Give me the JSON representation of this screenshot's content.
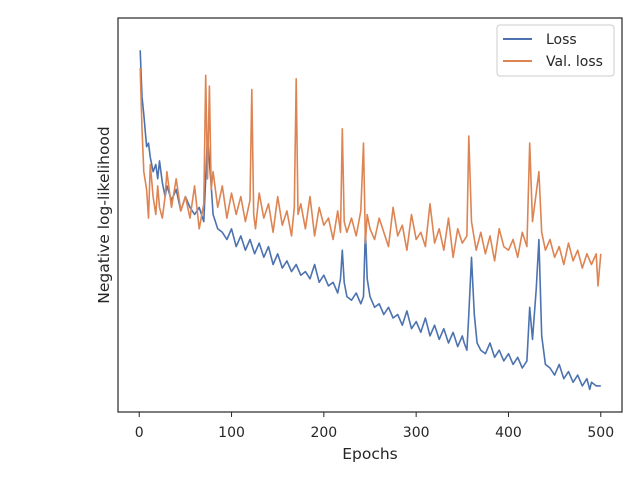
{
  "chart_data": {
    "type": "line",
    "title": "",
    "xlabel": "Epochs",
    "ylabel": "Negative log-likelihood",
    "xlim": [
      -23,
      523
    ],
    "ylim": [
      0,
      1
    ],
    "xticks": [
      0,
      100,
      200,
      300,
      400,
      500
    ],
    "ytick_labels_shown": false,
    "grid": false,
    "legend_position": "top-right",
    "series": [
      {
        "name": "Loss",
        "color": "#4c72b0",
        "x": [
          1,
          3,
          5,
          8,
          10,
          12,
          15,
          18,
          20,
          22,
          25,
          28,
          30,
          35,
          40,
          45,
          50,
          55,
          60,
          65,
          70,
          72,
          74,
          76,
          78,
          80,
          85,
          90,
          95,
          100,
          105,
          110,
          115,
          120,
          125,
          130,
          135,
          140,
          145,
          150,
          155,
          160,
          165,
          170,
          175,
          180,
          185,
          190,
          195,
          200,
          205,
          210,
          215,
          218,
          220,
          222,
          225,
          230,
          235,
          240,
          243,
          245,
          247,
          250,
          255,
          260,
          265,
          270,
          275,
          280,
          285,
          290,
          295,
          300,
          305,
          310,
          315,
          320,
          325,
          330,
          335,
          340,
          345,
          350,
          352,
          355,
          357,
          360,
          363,
          366,
          370,
          375,
          380,
          385,
          390,
          395,
          400,
          405,
          410,
          415,
          420,
          423,
          426,
          430,
          433,
          436,
          440,
          445,
          450,
          455,
          460,
          465,
          470,
          475,
          480,
          485,
          488,
          490,
          495,
          500
        ],
        "y": [
          0.96,
          0.83,
          0.78,
          0.69,
          0.7,
          0.66,
          0.62,
          0.64,
          0.6,
          0.65,
          0.59,
          0.55,
          0.58,
          0.54,
          0.57,
          0.51,
          0.55,
          0.52,
          0.5,
          0.52,
          0.48,
          0.6,
          0.72,
          0.65,
          0.58,
          0.5,
          0.46,
          0.45,
          0.43,
          0.46,
          0.41,
          0.44,
          0.4,
          0.43,
          0.39,
          0.42,
          0.38,
          0.41,
          0.36,
          0.39,
          0.35,
          0.37,
          0.34,
          0.36,
          0.33,
          0.34,
          0.32,
          0.36,
          0.31,
          0.33,
          0.3,
          0.31,
          0.28,
          0.32,
          0.4,
          0.31,
          0.27,
          0.26,
          0.28,
          0.25,
          0.27,
          0.46,
          0.32,
          0.27,
          0.24,
          0.25,
          0.22,
          0.24,
          0.21,
          0.22,
          0.19,
          0.23,
          0.18,
          0.2,
          0.17,
          0.21,
          0.16,
          0.19,
          0.15,
          0.18,
          0.14,
          0.17,
          0.13,
          0.16,
          0.14,
          0.12,
          0.22,
          0.38,
          0.22,
          0.14,
          0.12,
          0.11,
          0.14,
          0.1,
          0.12,
          0.09,
          0.11,
          0.08,
          0.1,
          0.07,
          0.09,
          0.24,
          0.15,
          0.29,
          0.43,
          0.16,
          0.08,
          0.07,
          0.05,
          0.08,
          0.04,
          0.06,
          0.03,
          0.05,
          0.02,
          0.04,
          0.01,
          0.03,
          0.02,
          0.02
        ]
      },
      {
        "name": "Val. loss",
        "color": "#dd8452",
        "x": [
          1,
          3,
          5,
          8,
          10,
          12,
          15,
          18,
          20,
          22,
          25,
          28,
          30,
          35,
          40,
          45,
          50,
          55,
          60,
          65,
          70,
          72,
          74,
          76,
          78,
          80,
          85,
          90,
          95,
          100,
          105,
          110,
          115,
          120,
          122,
          124,
          126,
          130,
          135,
          140,
          145,
          150,
          155,
          160,
          165,
          168,
          170,
          172,
          175,
          180,
          185,
          190,
          195,
          200,
          205,
          210,
          215,
          218,
          220,
          222,
          225,
          230,
          235,
          240,
          243,
          245,
          247,
          250,
          255,
          260,
          265,
          270,
          275,
          280,
          285,
          290,
          295,
          300,
          305,
          310,
          315,
          320,
          325,
          330,
          335,
          340,
          345,
          350,
          355,
          357,
          360,
          365,
          370,
          375,
          380,
          385,
          390,
          395,
          400,
          405,
          410,
          415,
          420,
          423,
          426,
          430,
          433,
          436,
          440,
          445,
          450,
          455,
          460,
          465,
          470,
          475,
          480,
          485,
          490,
          495,
          497,
          500
        ],
        "y": [
          0.91,
          0.74,
          0.62,
          0.57,
          0.49,
          0.64,
          0.55,
          0.5,
          0.58,
          0.52,
          0.49,
          0.55,
          0.62,
          0.52,
          0.6,
          0.51,
          0.55,
          0.49,
          0.58,
          0.46,
          0.53,
          0.89,
          0.6,
          0.86,
          0.57,
          0.62,
          0.52,
          0.58,
          0.49,
          0.56,
          0.5,
          0.55,
          0.48,
          0.54,
          0.85,
          0.5,
          0.46,
          0.56,
          0.49,
          0.53,
          0.45,
          0.55,
          0.47,
          0.51,
          0.44,
          0.52,
          0.88,
          0.5,
          0.53,
          0.46,
          0.55,
          0.44,
          0.52,
          0.47,
          0.49,
          0.43,
          0.51,
          0.45,
          0.74,
          0.48,
          0.45,
          0.49,
          0.44,
          0.51,
          0.7,
          0.42,
          0.5,
          0.46,
          0.43,
          0.49,
          0.45,
          0.41,
          0.52,
          0.44,
          0.47,
          0.4,
          0.5,
          0.43,
          0.45,
          0.41,
          0.53,
          0.42,
          0.46,
          0.4,
          0.49,
          0.38,
          0.46,
          0.42,
          0.44,
          0.72,
          0.48,
          0.4,
          0.45,
          0.39,
          0.44,
          0.37,
          0.46,
          0.41,
          0.4,
          0.43,
          0.38,
          0.45,
          0.41,
          0.7,
          0.48,
          0.56,
          0.62,
          0.45,
          0.4,
          0.43,
          0.38,
          0.41,
          0.36,
          0.42,
          0.37,
          0.4,
          0.35,
          0.39,
          0.36,
          0.39,
          0.3,
          0.39
        ]
      }
    ]
  }
}
